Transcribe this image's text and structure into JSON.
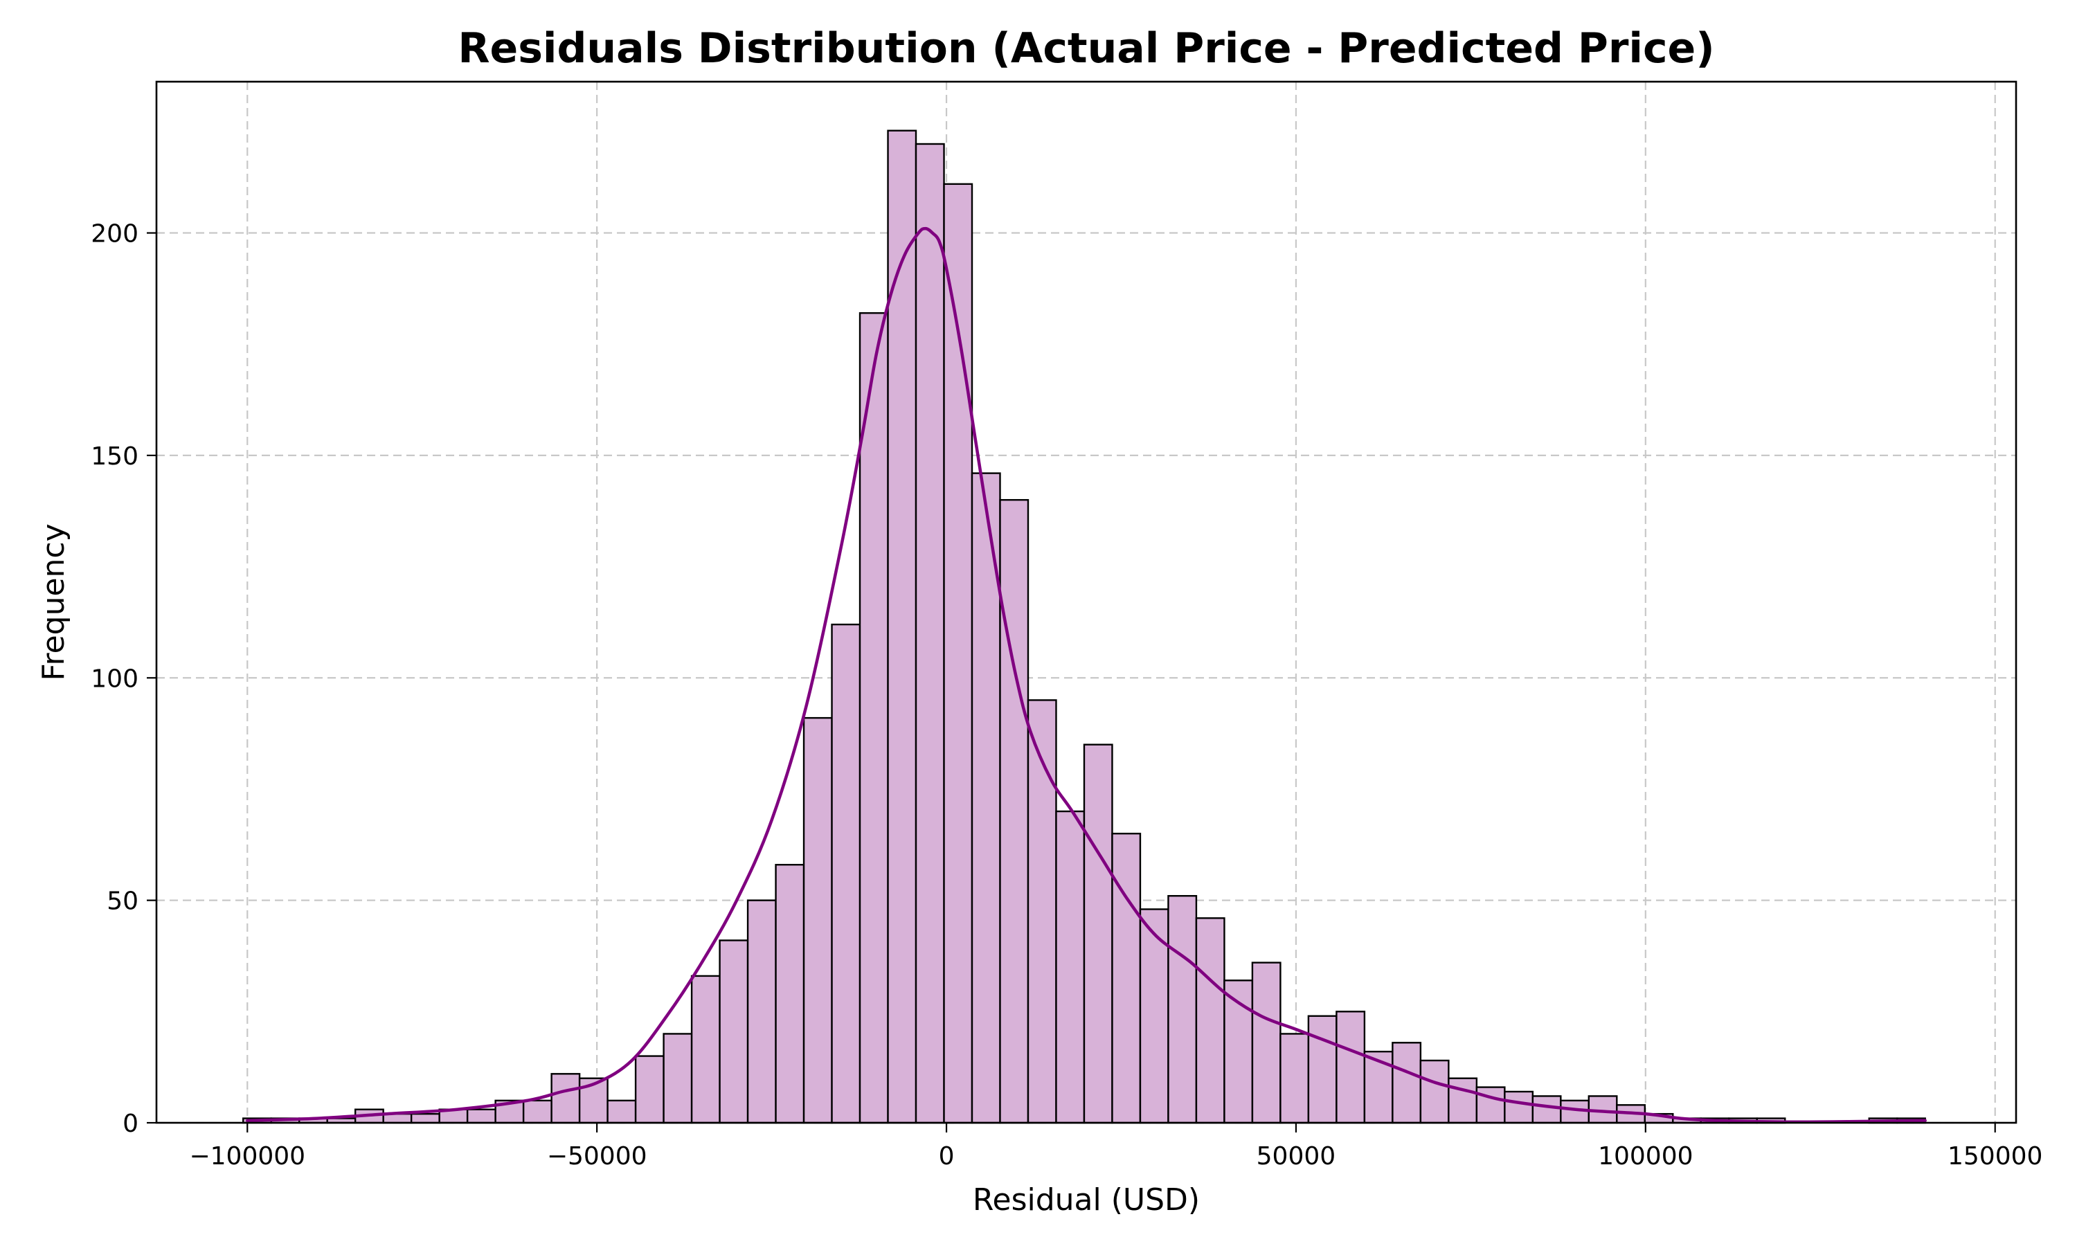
{
  "chart_data": {
    "type": "bar",
    "subtype": "histogram-with-density-curve",
    "title": "Residuals Distribution (Actual Price - Predicted Price)",
    "xlabel": "Residual (USD)",
    "ylabel": "Frequency",
    "xlim": [
      -113000,
      153000
    ],
    "ylim": [
      0,
      234
    ],
    "grid": true,
    "xticks": [
      -100000,
      -50000,
      0,
      50000,
      100000,
      150000
    ],
    "xtick_labels": [
      "−100000",
      "−50000",
      "0",
      "50000",
      "100000",
      "150000"
    ],
    "yticks": [
      0,
      50,
      100,
      150,
      200
    ],
    "ytick_labels": [
      "0",
      "50",
      "100",
      "150",
      "200"
    ],
    "bin_start": -100600,
    "bin_width": 4010,
    "values": [
      1,
      1,
      1,
      1,
      3,
      2,
      2,
      3,
      3,
      5,
      5,
      11,
      10,
      5,
      15,
      20,
      33,
      41,
      50,
      58,
      91,
      112,
      182,
      223,
      220,
      211,
      146,
      140,
      95,
      70,
      85,
      65,
      48,
      51,
      46,
      32,
      36,
      20,
      24,
      25,
      16,
      18,
      14,
      10,
      8,
      7,
      6,
      5,
      6,
      4,
      2,
      1,
      1,
      1,
      1,
      0,
      0,
      0,
      1,
      1
    ],
    "density_curve": {
      "x": [
        -100000,
        -90000,
        -80000,
        -70000,
        -60000,
        -55000,
        -50000,
        -45000,
        -40000,
        -35000,
        -30000,
        -25000,
        -20000,
        -15000,
        -12000,
        -10000,
        -8000,
        -6000,
        -4000,
        -3000,
        -2000,
        -1000,
        0,
        2000,
        4000,
        6000,
        8000,
        10000,
        12000,
        15000,
        18000,
        22000,
        26000,
        30000,
        35000,
        40000,
        45000,
        50000,
        55000,
        60000,
        65000,
        70000,
        75000,
        80000,
        90000,
        100000,
        105000,
        110000,
        120000,
        130000,
        140000
      ],
      "y": [
        0.5,
        1,
        2,
        3,
        5,
        7,
        9,
        14,
        24,
        36,
        50,
        68,
        94,
        130,
        155,
        173,
        186,
        195,
        200,
        201,
        200,
        198,
        192,
        175,
        155,
        135,
        116,
        100,
        88,
        77,
        70,
        60,
        50,
        42,
        36,
        29,
        24,
        21,
        18,
        15,
        12,
        9,
        7,
        5,
        3,
        2,
        1,
        0.5,
        0.2,
        0.3,
        0.5
      ]
    },
    "colors": {
      "bar_fill": "#d8b2d8",
      "bar_edge": "#000000",
      "curve": "#800080",
      "grid": "#c8c8c8"
    }
  }
}
